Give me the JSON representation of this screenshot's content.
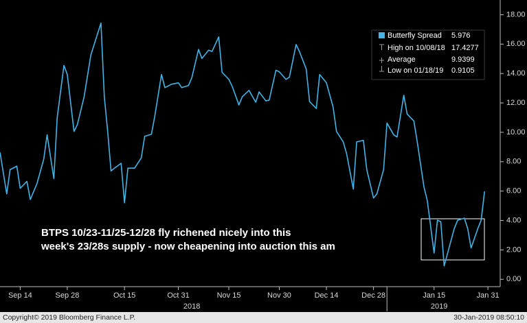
{
  "chart_data": {
    "type": "line",
    "series": [
      {
        "name": "Butterfly Spread",
        "color": "#44b4e6",
        "last_value": 5.976,
        "values": [
          8.64,
          5.81,
          7.46,
          7.7,
          6.19,
          6.66,
          5.43,
          6.52,
          8.17,
          9.83,
          6.85,
          11.0,
          14.55,
          13.93,
          10.06,
          10.53,
          12.42,
          15.26,
          17.43,
          12.42,
          10.06,
          7.37,
          7.56,
          7.89,
          5.2,
          7.56,
          7.56,
          8.27,
          9.73,
          9.87,
          11.1,
          13.93,
          13.04,
          13.27,
          13.37,
          13.04,
          13.18,
          13.7,
          15.64,
          15.02,
          15.59,
          15.5,
          16.49,
          14.08,
          13.6,
          13.13,
          11.86,
          12.42,
          12.85,
          12.05,
          12.75,
          12.14,
          12.19,
          14.22,
          14.12,
          13.6,
          13.75,
          15.97,
          15.49,
          14.31,
          12.09,
          11.62,
          13.93,
          13.37,
          11.71,
          10.06,
          9.35,
          8.55,
          6.14,
          9.35,
          9.45,
          7.46,
          5.53,
          5.81,
          7.46,
          10.63,
          9.83,
          9.68,
          12.52,
          11.24,
          10.77,
          9.35,
          6.28,
          5.34,
          1.79,
          4.02,
          3.92,
          0.91,
          3.45,
          4.02,
          4.16,
          3.45,
          2.13,
          3.45,
          4.02,
          5.98
        ]
      }
    ],
    "x": [
      "2018-09-08",
      "2018-09-10",
      "2018-09-11",
      "2018-09-13",
      "2018-09-14",
      "2018-09-16",
      "2018-09-17",
      "2018-09-19",
      "2018-09-21",
      "2018-09-22",
      "2018-09-24",
      "2018-09-25",
      "2018-09-27",
      "2018-09-28",
      "2018-09-30",
      "2018-10-01",
      "2018-10-03",
      "2018-10-05",
      "2018-10-08",
      "2018-10-09",
      "2018-10-10",
      "2018-10-11",
      "2018-10-12",
      "2018-10-14",
      "2018-10-15",
      "2018-10-16",
      "2018-10-18",
      "2018-10-20",
      "2018-10-21",
      "2018-10-23",
      "2018-10-24",
      "2018-10-26",
      "2018-10-27",
      "2018-10-29",
      "2018-10-31",
      "2018-11-01",
      "2018-11-03",
      "2018-11-04",
      "2018-11-06",
      "2018-11-07",
      "2018-11-09",
      "2018-11-10",
      "2018-11-12",
      "2018-11-13",
      "2018-11-15",
      "2018-11-16",
      "2018-11-18",
      "2018-11-19",
      "2018-11-21",
      "2018-11-23",
      "2018-11-24",
      "2018-11-26",
      "2018-11-27",
      "2018-11-29",
      "2018-11-30",
      "2018-12-02",
      "2018-12-03",
      "2018-12-05",
      "2018-12-06",
      "2018-12-08",
      "2018-12-09",
      "2018-12-11",
      "2018-12-12",
      "2018-12-14",
      "2018-12-16",
      "2018-12-17",
      "2018-12-19",
      "2018-12-20",
      "2018-12-22",
      "2018-12-23",
      "2018-12-25",
      "2018-12-26",
      "2018-12-28",
      "2018-12-29",
      "2018-12-31",
      "2019-01-01",
      "2019-01-03",
      "2019-01-04",
      "2019-01-06",
      "2019-01-07",
      "2019-01-09",
      "2019-01-10",
      "2019-01-12",
      "2019-01-13",
      "2019-01-15",
      "2019-01-16",
      "2019-01-17",
      "2019-01-18",
      "2019-01-21",
      "2019-01-22",
      "2019-01-24",
      "2019-01-25",
      "2019-01-26",
      "2019-01-28",
      "2019-01-29",
      "2019-01-30"
    ],
    "xlim": [
      "2018-09-08",
      "2019-02-01"
    ],
    "xticks": [
      {
        "value": "2018-09-14",
        "label": "Sep 14"
      },
      {
        "value": "2018-09-28",
        "label": "Sep 28"
      },
      {
        "value": "2018-10-15",
        "label": "Oct 15"
      },
      {
        "value": "2018-10-31",
        "label": "Oct 31"
      },
      {
        "value": "2018-11-15",
        "label": "Nov 15"
      },
      {
        "value": "2018-11-30",
        "label": "Nov 30"
      },
      {
        "value": "2018-12-14",
        "label": "Dec 14"
      },
      {
        "value": "2018-12-28",
        "label": "Dec 28"
      },
      {
        "value": "2019-01-15",
        "label": "Jan 15"
      },
      {
        "value": "2019-01-31",
        "label": "Jan 31"
      }
    ],
    "years": [
      {
        "value": "2018",
        "start": "2018-09-08",
        "end": "2018-12-31"
      },
      {
        "value": "2019",
        "start": "2019-01-01",
        "end": "2019-02-01"
      }
    ],
    "ylim": [
      -0.5,
      19
    ],
    "yticks": [
      {
        "value": 0,
        "label": "0.00"
      },
      {
        "value": 2,
        "label": "2.00"
      },
      {
        "value": 4,
        "label": "4.00"
      },
      {
        "value": 6,
        "label": "6.00"
      },
      {
        "value": 8,
        "label": "8.00"
      },
      {
        "value": 10,
        "label": "10.00"
      },
      {
        "value": 12,
        "label": "12.00"
      },
      {
        "value": 14,
        "label": "14.00"
      },
      {
        "value": 16,
        "label": "16.00"
      },
      {
        "value": 18,
        "label": "18.00"
      }
    ],
    "stats": [
      {
        "label": "High on 10/08/18",
        "value": 17.4277
      },
      {
        "label": "Average",
        "value": 9.9399
      },
      {
        "label": "Low on 01/18/19",
        "value": 0.9105
      }
    ],
    "annotation": [
      "BTPS 10/23-11/25-12/28 fly richened nicely into this",
      "week's 23/28s supply - now cheapening into auction this am"
    ],
    "footer": {
      "copyright": "Copyright© 2019 Bloomberg Finance L.P.",
      "timestamp": "30-Jan-2019 08:50:10"
    }
  }
}
